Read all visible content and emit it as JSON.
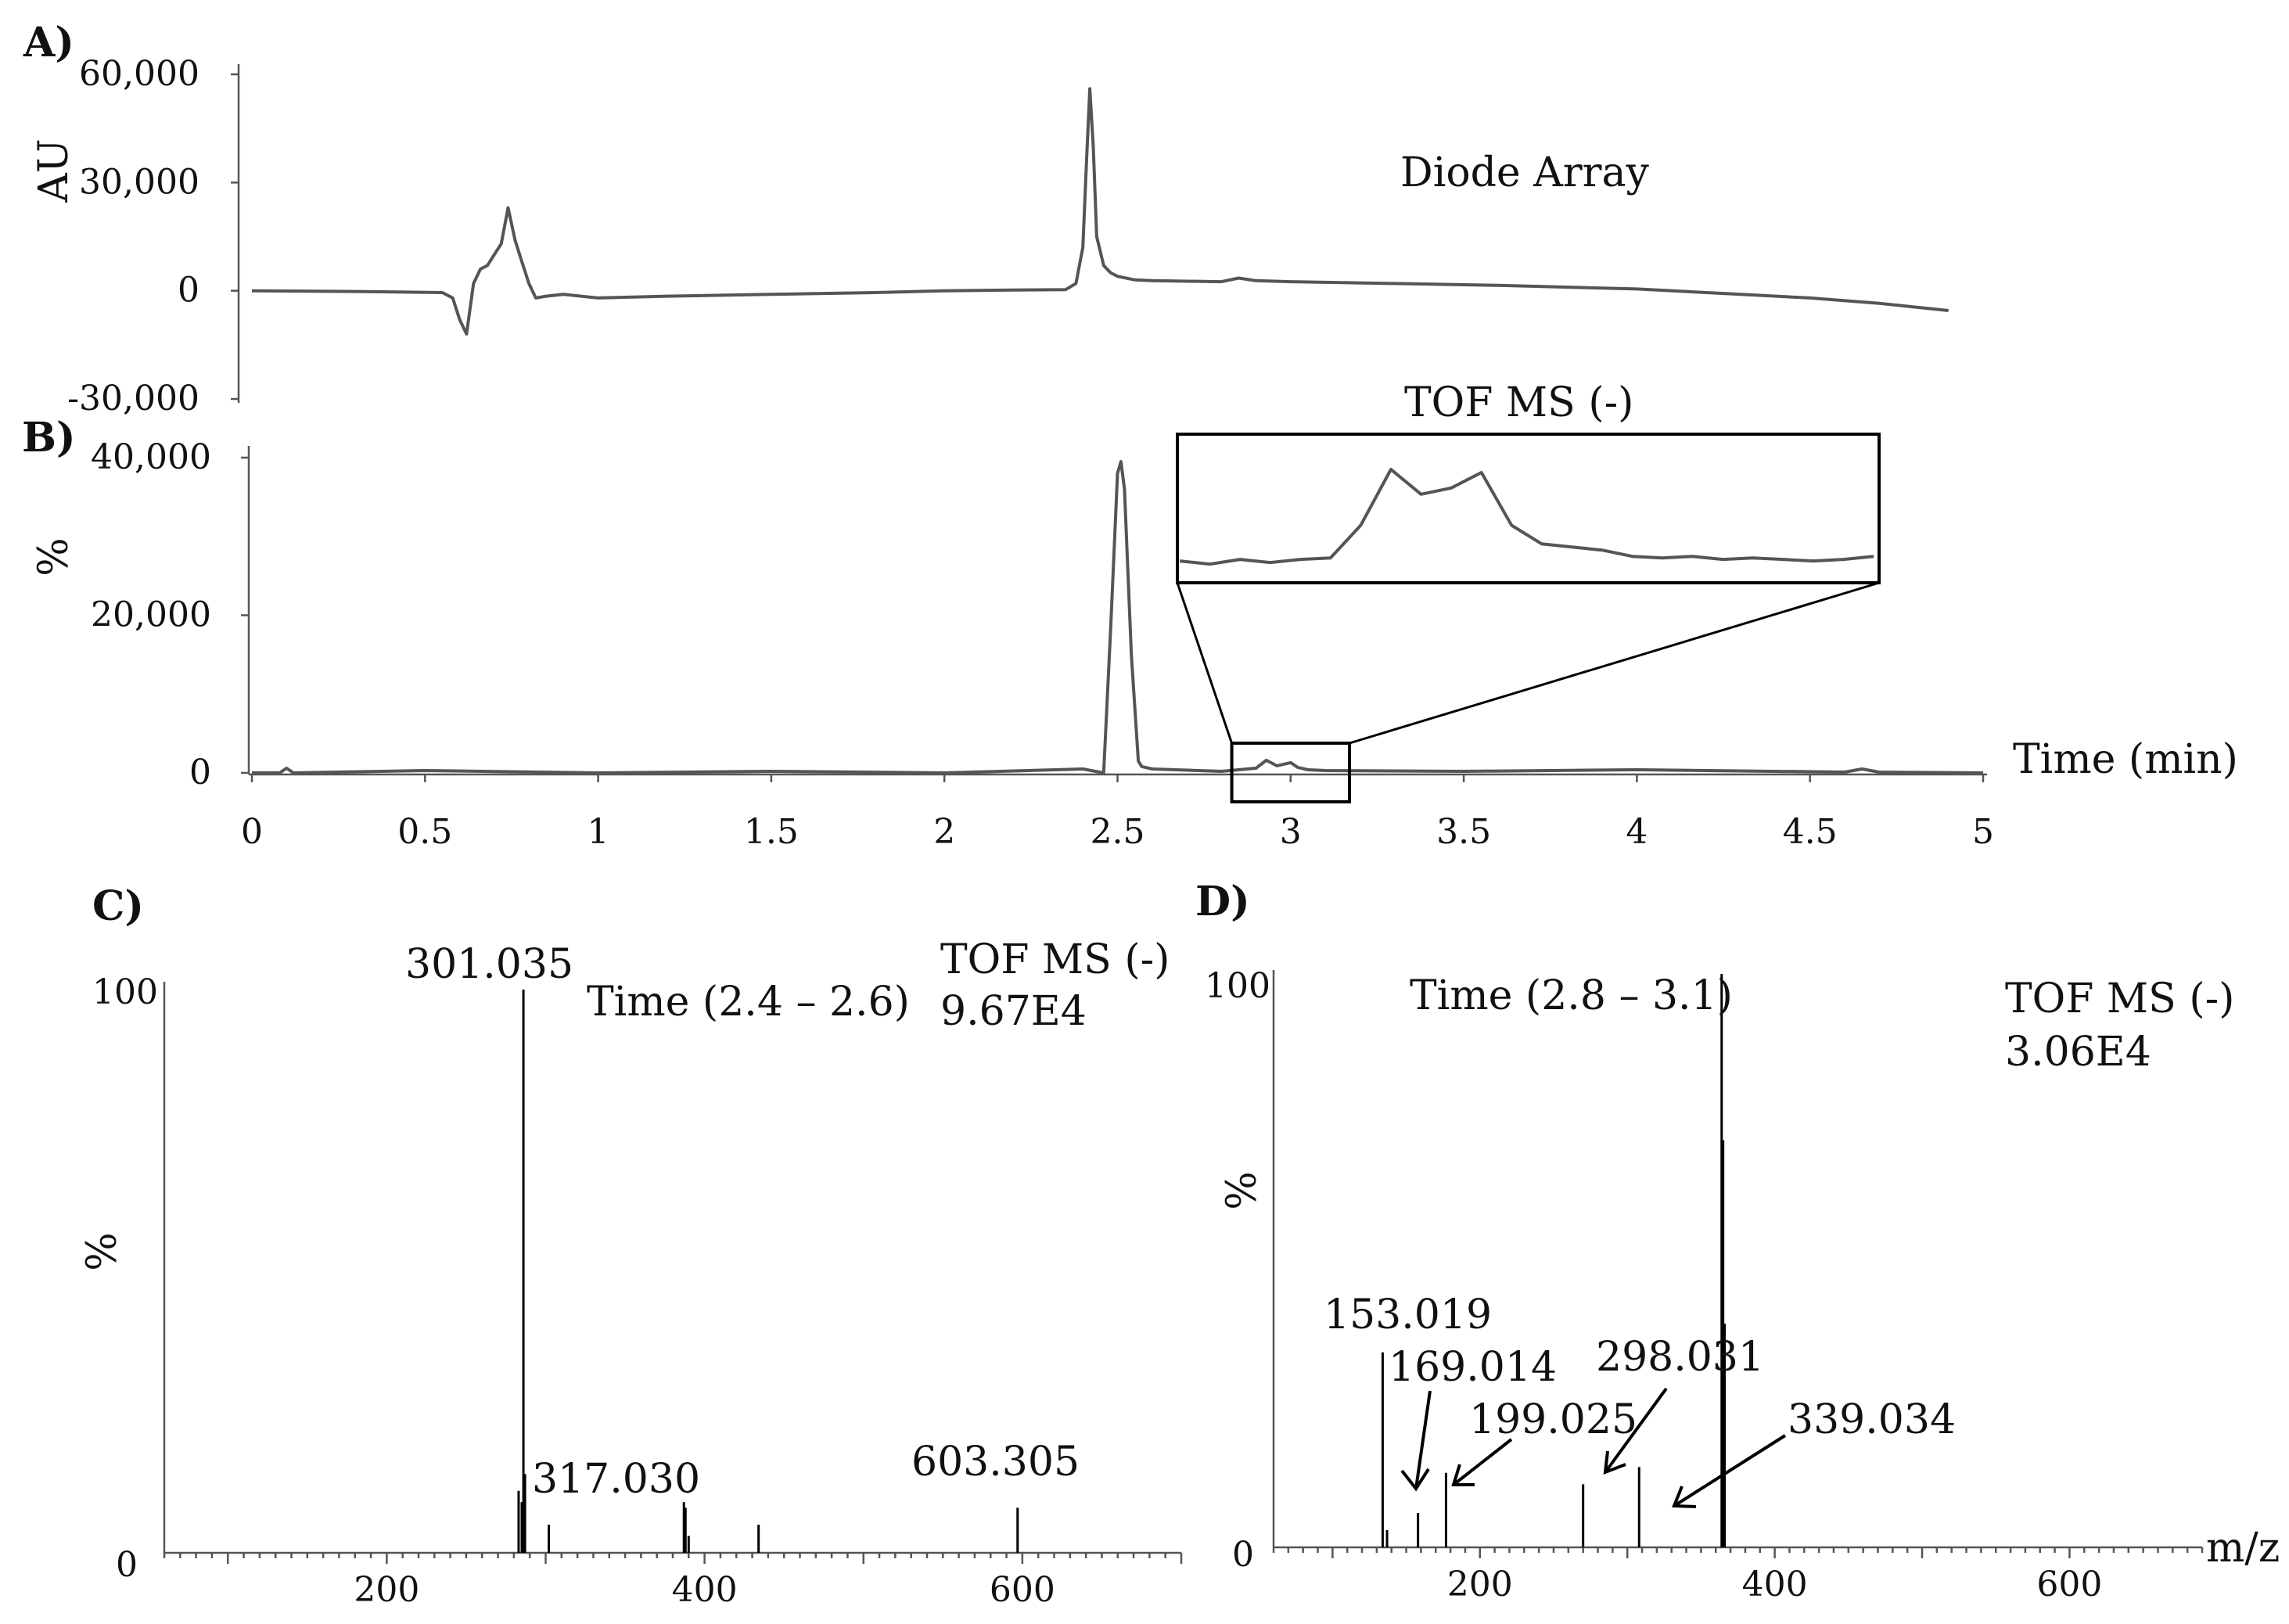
{
  "panels": {
    "A": {
      "label": "A)"
    },
    "B": {
      "label": "B)"
    },
    "C": {
      "label": "C)"
    },
    "D": {
      "label": "D)"
    }
  },
  "chart_data": [
    {
      "id": "A",
      "type": "line",
      "ylabel": "AU",
      "series_label": "Diode Array",
      "ylim": [
        -30000,
        60000
      ],
      "yticks": [
        "60,000",
        "30,000",
        "0",
        "-30,000"
      ],
      "ytick_values": [
        60000,
        30000,
        0,
        -30000
      ],
      "xlim": [
        0,
        5
      ],
      "x": [
        0.0,
        0.3,
        0.55,
        0.58,
        0.6,
        0.62,
        0.64,
        0.66,
        0.68,
        0.7,
        0.72,
        0.74,
        0.76,
        0.78,
        0.8,
        0.82,
        0.85,
        0.9,
        1.0,
        1.2,
        1.5,
        1.8,
        2.0,
        2.2,
        2.35,
        2.38,
        2.4,
        2.41,
        2.42,
        2.43,
        2.44,
        2.46,
        2.48,
        2.5,
        2.55,
        2.6,
        2.8,
        2.85,
        2.9,
        3.0,
        3.3,
        3.6,
        4.0,
        4.3,
        4.5,
        4.7,
        4.9
      ],
      "y": [
        0,
        -200,
        -500,
        -2000,
        -8000,
        -12000,
        2000,
        6000,
        7000,
        10000,
        13000,
        23000,
        14000,
        8000,
        2000,
        -2000,
        -1500,
        -1000,
        -2000,
        -1500,
        -1000,
        -500,
        0,
        200,
        300,
        2000,
        12000,
        35000,
        56000,
        40000,
        15000,
        7000,
        5000,
        4000,
        3000,
        2800,
        2500,
        3500,
        2800,
        2500,
        2000,
        1500,
        500,
        -1000,
        -2000,
        -3500,
        -5500
      ]
    },
    {
      "id": "B",
      "type": "line",
      "ylabel": "%",
      "series_label": "TOF MS (-)",
      "xlabel": "Time (min)",
      "ylim": [
        0,
        40000
      ],
      "yticks": [
        "40,000",
        "20,000",
        "0"
      ],
      "ytick_values": [
        40000,
        20000,
        0
      ],
      "xlim": [
        0,
        5
      ],
      "xticks": [
        "0",
        "0.5",
        "1",
        "1.5",
        "2",
        "2.5",
        "3",
        "3.5",
        "4",
        "4.5",
        "5"
      ],
      "xtick_values": [
        0,
        0.5,
        1,
        1.5,
        2,
        2.5,
        3,
        3.5,
        4,
        4.5,
        5
      ],
      "x": [
        0.0,
        0.08,
        0.1,
        0.12,
        0.5,
        1.0,
        1.5,
        2.0,
        2.4,
        2.46,
        2.48,
        2.5,
        2.51,
        2.52,
        2.54,
        2.56,
        2.57,
        2.6,
        2.8,
        2.9,
        2.93,
        2.96,
        3.0,
        3.02,
        3.05,
        3.1,
        3.5,
        4.0,
        4.6,
        4.65,
        4.7,
        5.0
      ],
      "y": [
        0,
        0,
        600,
        0,
        300,
        0,
        200,
        0,
        500,
        0,
        18000,
        38000,
        39500,
        36000,
        15000,
        1500,
        800,
        500,
        200,
        600,
        1600,
        900,
        1300,
        700,
        400,
        300,
        200,
        400,
        100,
        500,
        100,
        0
      ],
      "zoom_window": [
        2.83,
        3.17
      ],
      "inset_y": [
        0.45,
        0.35,
        0.5,
        0.4,
        0.5,
        0.55,
        1.6,
        3.4,
        2.6,
        2.8,
        3.3,
        1.6,
        1.0,
        0.9,
        0.8,
        0.6,
        0.55,
        0.6,
        0.5,
        0.55,
        0.5,
        0.45,
        0.5,
        0.6
      ]
    },
    {
      "id": "C",
      "type": "bar",
      "ylabel": "%",
      "ylim": [
        0,
        100
      ],
      "yticks": [
        "100",
        "0"
      ],
      "xlim": [
        60,
        700
      ],
      "xticks": [
        "200",
        "400",
        "600"
      ],
      "xtick_values": [
        200,
        400,
        600
      ],
      "time_label": "Time (2.4 – 2.6)",
      "mode_label": "TOF MS (-)",
      "intensity_label": "9.67E4",
      "peaks": [
        {
          "mz": 283,
          "rel": 11
        },
        {
          "mz": 285,
          "rel": 9
        },
        {
          "mz": 286,
          "rel": 100,
          "label": "301.035"
        },
        {
          "mz": 287,
          "rel": 14,
          "label": "317.030"
        },
        {
          "mz": 302,
          "rel": 5
        },
        {
          "mz": 387,
          "rel": 9
        },
        {
          "mz": 388,
          "rel": 8
        },
        {
          "mz": 390,
          "rel": 3
        },
        {
          "mz": 434,
          "rel": 5
        },
        {
          "mz": 597,
          "rel": 8,
          "label": "603.305"
        }
      ]
    },
    {
      "id": "D",
      "type": "bar",
      "ylabel": "%",
      "xlabel": "m/z",
      "ylim": [
        0,
        100
      ],
      "yticks": [
        "100",
        "0"
      ],
      "xlim": [
        60,
        690
      ],
      "xticks": [
        "200",
        "400",
        "600"
      ],
      "xtick_values": [
        200,
        400,
        600
      ],
      "time_label": "Time (2.8 – 3.1)",
      "mode_label": "TOF MS (-)",
      "intensity_label": "3.06E4",
      "peaks": [
        {
          "mz": 134,
          "rel": 34,
          "label": "153.019"
        },
        {
          "mz": 137,
          "rel": 3
        },
        {
          "mz": 158,
          "rel": 6,
          "label": "169.014"
        },
        {
          "mz": 177,
          "rel": 13,
          "label": "199.025"
        },
        {
          "mz": 270,
          "rel": 11,
          "label": "298.031"
        },
        {
          "mz": 308,
          "rel": 14,
          "label": "339.034"
        },
        {
          "mz": 364,
          "rel": 100
        },
        {
          "mz": 365,
          "rel": 71
        },
        {
          "mz": 366,
          "rel": 39
        }
      ]
    }
  ]
}
